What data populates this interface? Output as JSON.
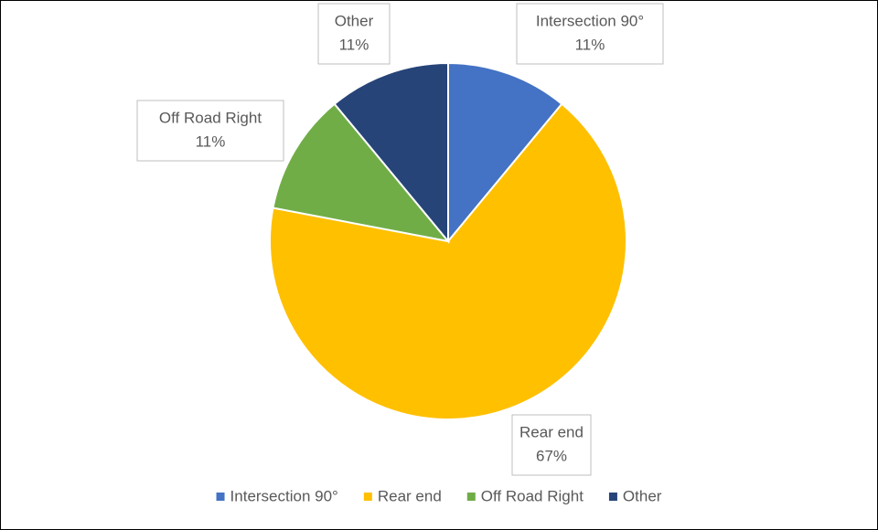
{
  "chart_data": {
    "type": "pie",
    "categories": [
      "Intersection 90°",
      "Rear end",
      "Off Road Right",
      "Other"
    ],
    "values": [
      11,
      67,
      11,
      11
    ],
    "value_labels": [
      "11%",
      "67%",
      "11%",
      "11%"
    ],
    "colors": [
      "#4472c4",
      "#ffc000",
      "#70ad47",
      "#264478"
    ],
    "legend": "bottom"
  }
}
